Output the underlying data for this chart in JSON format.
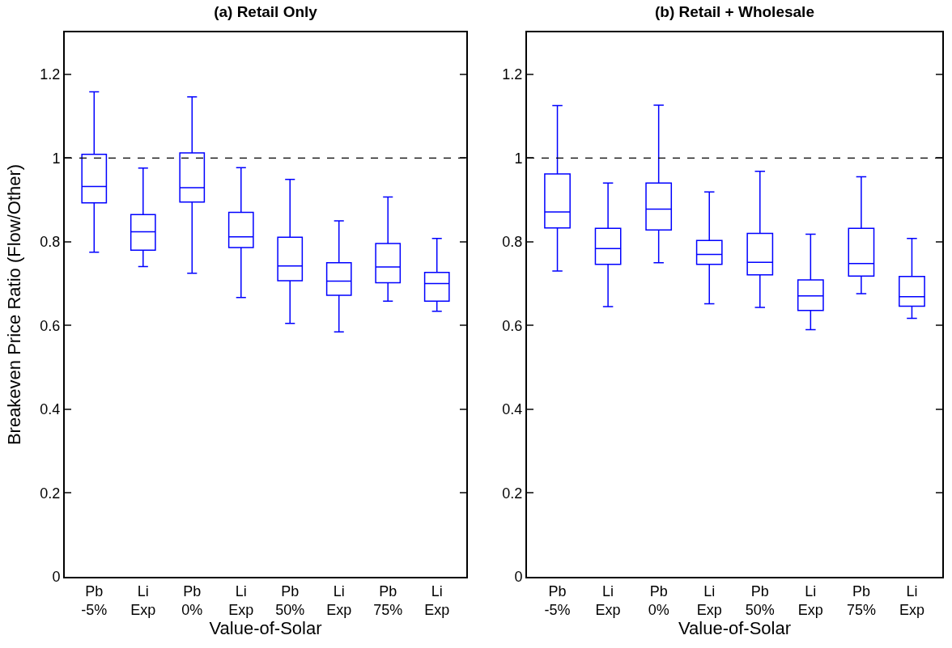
{
  "chart_data": [
    {
      "type": "box",
      "title": "(a) Retail Only",
      "xlabel": "Value-of-Solar",
      "ylabel": "Breakeven Price Ratio (Flow/Other)",
      "categories": [
        "Pb\n-5%",
        "Li\nExp",
        "Pb\n0%",
        "Li\nExp",
        "Pb\n50%",
        "Li\nExp",
        "Pb\n75%",
        "Li\nExp"
      ],
      "color": "#0000ff",
      "ylim": [
        0,
        1.3
      ],
      "yticks": [
        0,
        0.2,
        0.4,
        0.6,
        0.8,
        1,
        1.2
      ],
      "grid": false,
      "legend": false,
      "ref_lines": [
        {
          "axis": "y",
          "value": 1,
          "color": "#000000",
          "line_style": "dashed"
        }
      ],
      "boxes": [
        {
          "low": 0.775,
          "q1": 0.893,
          "median": 0.932,
          "q3": 1.009,
          "high": 1.158
        },
        {
          "low": 0.741,
          "q1": 0.78,
          "median": 0.824,
          "q3": 0.865,
          "high": 0.976
        },
        {
          "low": 0.725,
          "q1": 0.895,
          "median": 0.929,
          "q3": 1.012,
          "high": 1.146
        },
        {
          "low": 0.667,
          "q1": 0.786,
          "median": 0.812,
          "q3": 0.87,
          "high": 0.977
        },
        {
          "low": 0.605,
          "q1": 0.707,
          "median": 0.742,
          "q3": 0.811,
          "high": 0.949
        },
        {
          "low": 0.585,
          "q1": 0.672,
          "median": 0.706,
          "q3": 0.75,
          "high": 0.85
        },
        {
          "low": 0.658,
          "q1": 0.702,
          "median": 0.74,
          "q3": 0.796,
          "high": 0.907
        },
        {
          "low": 0.634,
          "q1": 0.658,
          "median": 0.7,
          "q3": 0.727,
          "high": 0.808
        }
      ]
    },
    {
      "type": "box",
      "title": "(b) Retail + Wholesale",
      "xlabel": "Value-of-Solar",
      "categories": [
        "Pb\n-5%",
        "Li\nExp",
        "Pb\n0%",
        "Li\nExp",
        "Pb\n50%",
        "Li\nExp",
        "Pb\n75%",
        "Li\nExp"
      ],
      "color": "#0000ff",
      "ylim": [
        0,
        1.3
      ],
      "yticks": [
        0,
        0.2,
        0.4,
        0.6,
        0.8,
        1,
        1.2
      ],
      "grid": false,
      "legend": false,
      "ref_lines": [
        {
          "axis": "y",
          "value": 1,
          "color": "#000000",
          "line_style": "dashed"
        }
      ],
      "boxes": [
        {
          "low": 0.73,
          "q1": 0.833,
          "median": 0.871,
          "q3": 0.962,
          "high": 1.125
        },
        {
          "low": 0.645,
          "q1": 0.746,
          "median": 0.784,
          "q3": 0.832,
          "high": 0.94
        },
        {
          "low": 0.75,
          "q1": 0.828,
          "median": 0.878,
          "q3": 0.94,
          "high": 1.126
        },
        {
          "low": 0.652,
          "q1": 0.746,
          "median": 0.77,
          "q3": 0.803,
          "high": 0.919
        },
        {
          "low": 0.643,
          "q1": 0.721,
          "median": 0.751,
          "q3": 0.82,
          "high": 0.968
        },
        {
          "low": 0.59,
          "q1": 0.636,
          "median": 0.671,
          "q3": 0.709,
          "high": 0.818
        },
        {
          "low": 0.676,
          "q1": 0.718,
          "median": 0.748,
          "q3": 0.832,
          "high": 0.955
        },
        {
          "low": 0.617,
          "q1": 0.646,
          "median": 0.669,
          "q3": 0.717,
          "high": 0.808
        }
      ]
    }
  ]
}
